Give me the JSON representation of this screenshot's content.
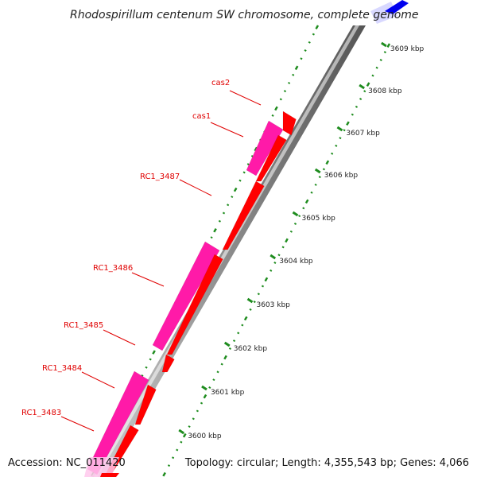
{
  "map": {
    "title": "Rhodospirillum centenum SW chromosome, complete genome",
    "accession": "Accession: NC_011420",
    "summary": "Topology: circular; Length: 4,355,543 bp; Genes: 4,066"
  },
  "colors": {
    "forward_gene": "#ff0000",
    "reverse_gene": "#ff1aa8",
    "backbone": "#8c8c8c",
    "tick_marks": "#1e8c1e",
    "label_text": "#e00000",
    "top_feature": "#0000ee"
  },
  "scale": {
    "ticks": [
      "3600 kbp",
      "3601 kbp",
      "3602 kbp",
      "3603 kbp",
      "3604 kbp",
      "3605 kbp",
      "3606 kbp",
      "3607 kbp",
      "3608 kbp",
      "3609 kbp"
    ]
  },
  "genes": [
    {
      "name": "cas2",
      "strand": "forward"
    },
    {
      "name": "cas1",
      "strand": "reverse"
    },
    {
      "name": "RC1_3487",
      "strand": "forward"
    },
    {
      "name": "RC1_3486",
      "strand": "reverse"
    },
    {
      "name": "RC1_3485",
      "strand": "forward"
    },
    {
      "name": "RC1_3484",
      "strand": "reverse"
    },
    {
      "name": "RC1_3483",
      "strand": "forward"
    }
  ]
}
